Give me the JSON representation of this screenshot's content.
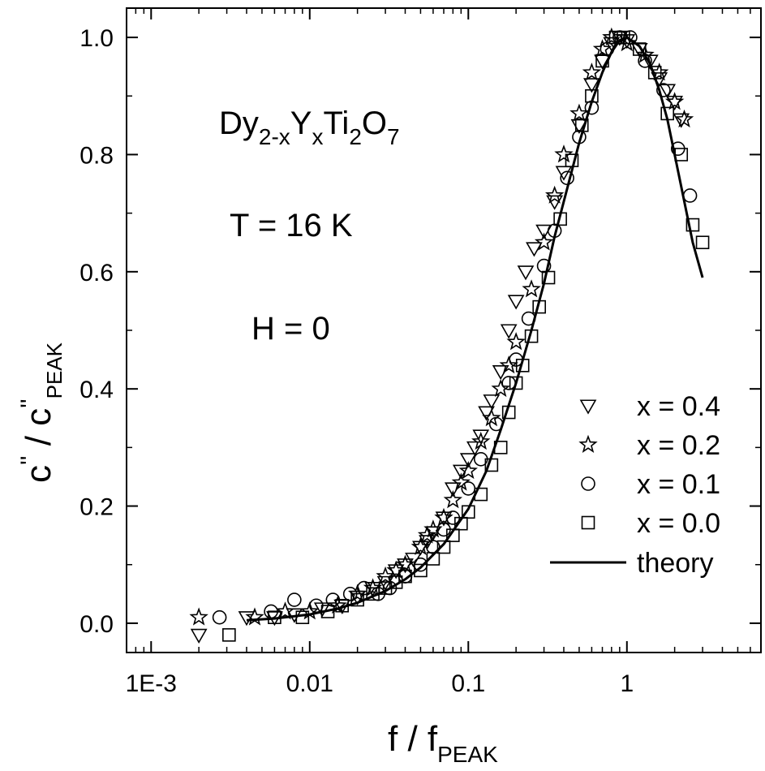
{
  "chart_data": {
    "type": "scatter",
    "xscale": "log",
    "xlim": [
      0.0007,
      7
    ],
    "ylim": [
      -0.05,
      1.05
    ],
    "x_ticks": [
      {
        "value": 0.001,
        "label": "1E-3"
      },
      {
        "value": 0.01,
        "label": "0.01"
      },
      {
        "value": 0.1,
        "label": "0.1"
      },
      {
        "value": 1,
        "label": "1"
      }
    ],
    "y_ticks": [
      {
        "value": 0.0,
        "label": "0.0"
      },
      {
        "value": 0.2,
        "label": "0.2"
      },
      {
        "value": 0.4,
        "label": "0.4"
      },
      {
        "value": 0.6,
        "label": "0.6"
      },
      {
        "value": 0.8,
        "label": "0.8"
      },
      {
        "value": 1.0,
        "label": "1.0"
      }
    ],
    "xlabel": {
      "main": "f / f",
      "sub": "PEAK"
    },
    "ylabel": {
      "part1": "c",
      "sup1": "''",
      "part2": " / c",
      "sup2": "''",
      "sub": "PEAK"
    },
    "annotations": {
      "formula": [
        {
          "text": "Dy",
          "shift": "base"
        },
        {
          "text": "2-x",
          "shift": "sub"
        },
        {
          "text": "Y",
          "shift": "base"
        },
        {
          "text": "x",
          "shift": "sub"
        },
        {
          "text": "Ti",
          "shift": "base"
        },
        {
          "text": "2",
          "shift": "sub"
        },
        {
          "text": "O",
          "shift": "base"
        },
        {
          "text": "7",
          "shift": "sub"
        }
      ],
      "temperature": "T = 16 K",
      "field": "H = 0"
    },
    "legend_position": "bottom-right",
    "series": [
      {
        "name": "x = 0.4",
        "marker": "triangle-down",
        "points": [
          [
            0.002,
            -0.02
          ],
          [
            0.004,
            0.01
          ],
          [
            0.006,
            0.01
          ],
          [
            0.008,
            0.015
          ],
          [
            0.012,
            0.025
          ],
          [
            0.016,
            0.03
          ],
          [
            0.02,
            0.045
          ],
          [
            0.025,
            0.06
          ],
          [
            0.03,
            0.07
          ],
          [
            0.035,
            0.09
          ],
          [
            0.04,
            0.1
          ],
          [
            0.045,
            0.11
          ],
          [
            0.05,
            0.13
          ],
          [
            0.055,
            0.14
          ],
          [
            0.06,
            0.155
          ],
          [
            0.07,
            0.18
          ],
          [
            0.08,
            0.23
          ],
          [
            0.09,
            0.26
          ],
          [
            0.1,
            0.28
          ],
          [
            0.11,
            0.3
          ],
          [
            0.12,
            0.32
          ],
          [
            0.13,
            0.36
          ],
          [
            0.14,
            0.38
          ],
          [
            0.16,
            0.43
          ],
          [
            0.18,
            0.5
          ],
          [
            0.2,
            0.55
          ],
          [
            0.23,
            0.6
          ],
          [
            0.26,
            0.64
          ],
          [
            0.3,
            0.67
          ],
          [
            0.35,
            0.72
          ],
          [
            0.4,
            0.77
          ],
          [
            0.5,
            0.85
          ],
          [
            0.6,
            0.92
          ],
          [
            0.7,
            0.96
          ],
          [
            0.8,
            0.99
          ],
          [
            0.9,
            1.0
          ],
          [
            1.0,
            0.995
          ],
          [
            1.2,
            0.98
          ],
          [
            1.4,
            0.96
          ],
          [
            1.6,
            0.93
          ],
          [
            1.8,
            0.91
          ],
          [
            2.0,
            0.89
          ],
          [
            2.2,
            0.86
          ]
        ]
      },
      {
        "name": "x = 0.2",
        "marker": "star",
        "points": [
          [
            0.002,
            0.01
          ],
          [
            0.0045,
            0.01
          ],
          [
            0.007,
            0.02
          ],
          [
            0.01,
            0.02
          ],
          [
            0.015,
            0.03
          ],
          [
            0.02,
            0.05
          ],
          [
            0.025,
            0.06
          ],
          [
            0.03,
            0.08
          ],
          [
            0.035,
            0.09
          ],
          [
            0.04,
            0.1
          ],
          [
            0.05,
            0.13
          ],
          [
            0.055,
            0.15
          ],
          [
            0.06,
            0.16
          ],
          [
            0.07,
            0.18
          ],
          [
            0.08,
            0.21
          ],
          [
            0.09,
            0.24
          ],
          [
            0.1,
            0.26
          ],
          [
            0.12,
            0.31
          ],
          [
            0.14,
            0.35
          ],
          [
            0.16,
            0.4
          ],
          [
            0.18,
            0.44
          ],
          [
            0.2,
            0.48
          ],
          [
            0.25,
            0.57
          ],
          [
            0.3,
            0.65
          ],
          [
            0.35,
            0.73
          ],
          [
            0.4,
            0.8
          ],
          [
            0.5,
            0.87
          ],
          [
            0.6,
            0.94
          ],
          [
            0.7,
            0.98
          ],
          [
            0.8,
            1.0
          ],
          [
            1.0,
            0.99
          ],
          [
            1.3,
            0.97
          ],
          [
            1.6,
            0.94
          ],
          [
            2.0,
            0.89
          ],
          [
            2.3,
            0.86
          ]
        ]
      },
      {
        "name": "x = 0.1",
        "marker": "circle",
        "points": [
          [
            0.0027,
            0.01
          ],
          [
            0.0057,
            0.02
          ],
          [
            0.008,
            0.04
          ],
          [
            0.011,
            0.03
          ],
          [
            0.014,
            0.04
          ],
          [
            0.018,
            0.05
          ],
          [
            0.022,
            0.06
          ],
          [
            0.027,
            0.05
          ],
          [
            0.032,
            0.06
          ],
          [
            0.04,
            0.08
          ],
          [
            0.05,
            0.1
          ],
          [
            0.06,
            0.13
          ],
          [
            0.07,
            0.16
          ],
          [
            0.08,
            0.18
          ],
          [
            0.1,
            0.23
          ],
          [
            0.12,
            0.28
          ],
          [
            0.15,
            0.34
          ],
          [
            0.18,
            0.41
          ],
          [
            0.2,
            0.45
          ],
          [
            0.24,
            0.52
          ],
          [
            0.3,
            0.61
          ],
          [
            0.35,
            0.67
          ],
          [
            0.42,
            0.76
          ],
          [
            0.5,
            0.83
          ],
          [
            0.6,
            0.88
          ],
          [
            0.75,
            0.98
          ],
          [
            0.9,
            1.0
          ],
          [
            1.05,
            1.0
          ],
          [
            1.3,
            0.96
          ],
          [
            1.7,
            0.91
          ],
          [
            2.1,
            0.81
          ],
          [
            2.5,
            0.73
          ]
        ]
      },
      {
        "name": "x = 0.0",
        "marker": "square",
        "points": [
          [
            0.0031,
            -0.02
          ],
          [
            0.006,
            0.01
          ],
          [
            0.009,
            0.01
          ],
          [
            0.013,
            0.02
          ],
          [
            0.016,
            0.03
          ],
          [
            0.02,
            0.04
          ],
          [
            0.025,
            0.05
          ],
          [
            0.03,
            0.06
          ],
          [
            0.035,
            0.07
          ],
          [
            0.04,
            0.08
          ],
          [
            0.05,
            0.09
          ],
          [
            0.06,
            0.11
          ],
          [
            0.07,
            0.13
          ],
          [
            0.08,
            0.15
          ],
          [
            0.09,
            0.17
          ],
          [
            0.1,
            0.19
          ],
          [
            0.12,
            0.22
          ],
          [
            0.14,
            0.27
          ],
          [
            0.16,
            0.3
          ],
          [
            0.18,
            0.36
          ],
          [
            0.2,
            0.41
          ],
          [
            0.22,
            0.44
          ],
          [
            0.25,
            0.49
          ],
          [
            0.28,
            0.54
          ],
          [
            0.32,
            0.59
          ],
          [
            0.38,
            0.69
          ],
          [
            0.45,
            0.79
          ],
          [
            0.52,
            0.85
          ],
          [
            0.6,
            0.9
          ],
          [
            0.7,
            0.96
          ],
          [
            0.85,
            1.0
          ],
          [
            0.95,
            1.0
          ],
          [
            1.2,
            0.98
          ],
          [
            1.5,
            0.94
          ],
          [
            1.8,
            0.87
          ],
          [
            2.2,
            0.8
          ],
          [
            2.6,
            0.68
          ],
          [
            3.0,
            0.65
          ]
        ]
      }
    ],
    "theory": {
      "name": "theory",
      "points": [
        [
          0.004,
          0.005
        ],
        [
          0.006,
          0.008
        ],
        [
          0.01,
          0.015
        ],
        [
          0.015,
          0.025
        ],
        [
          0.02,
          0.035
        ],
        [
          0.03,
          0.055
        ],
        [
          0.04,
          0.075
        ],
        [
          0.05,
          0.095
        ],
        [
          0.07,
          0.135
        ],
        [
          0.1,
          0.195
        ],
        [
          0.13,
          0.26
        ],
        [
          0.16,
          0.33
        ],
        [
          0.2,
          0.41
        ],
        [
          0.25,
          0.5
        ],
        [
          0.3,
          0.58
        ],
        [
          0.35,
          0.66
        ],
        [
          0.4,
          0.72
        ],
        [
          0.5,
          0.82
        ],
        [
          0.6,
          0.89
        ],
        [
          0.7,
          0.94
        ],
        [
          0.8,
          0.975
        ],
        [
          0.9,
          0.995
        ],
        [
          1.0,
          1.0
        ],
        [
          1.2,
          0.985
        ],
        [
          1.4,
          0.955
        ],
        [
          1.6,
          0.91
        ],
        [
          1.8,
          0.86
        ],
        [
          2.0,
          0.8
        ],
        [
          2.3,
          0.72
        ],
        [
          2.6,
          0.65
        ],
        [
          3.0,
          0.59
        ]
      ]
    }
  }
}
